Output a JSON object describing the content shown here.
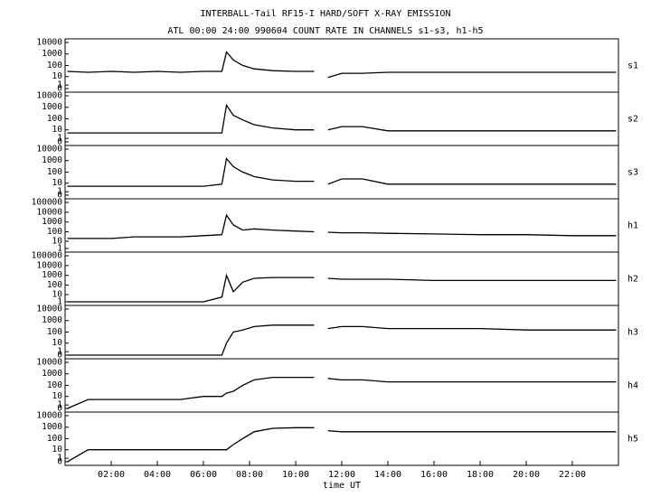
{
  "chart_data": [
    {
      "type": "line",
      "title": "INTERBALL-Tail RF15-I HARD/SOFT X-RAY EMISSION",
      "subtitle": "ATL 00:00 24:00 990604  COUNT RATE IN CHANNELS s1-s3, h1-h5",
      "label": "s1",
      "yscale": "log1p",
      "xlim": [
        0,
        24
      ],
      "ylim": [
        0,
        10000
      ],
      "yticks": [
        0,
        1,
        10,
        100,
        1000,
        10000
      ],
      "x": [
        0.1,
        1,
        2,
        3,
        4,
        5,
        6,
        6.8,
        7,
        7.3,
        7.7,
        8.2,
        9,
        10,
        10.8,
        11.1,
        11.4,
        12,
        12.9,
        14,
        16,
        18,
        20,
        22,
        23.9
      ],
      "values": [
        30,
        25,
        30,
        25,
        30,
        25,
        30,
        30,
        1500,
        300,
        100,
        50,
        35,
        30,
        30,
        null,
        8,
        20,
        20,
        25,
        25,
        25,
        25,
        25,
        25
      ]
    },
    {
      "type": "line",
      "label": "s2",
      "yscale": "log1p",
      "xlim": [
        0,
        24
      ],
      "ylim": [
        0,
        10000
      ],
      "yticks": [
        0,
        1,
        10,
        100,
        1000,
        10000
      ],
      "x": [
        0.1,
        1,
        2,
        3,
        4,
        5,
        6,
        6.8,
        7,
        7.3,
        7.7,
        8.2,
        9,
        10,
        10.8,
        11.1,
        11.4,
        12,
        12.9,
        14,
        16,
        18,
        20,
        22,
        23.9
      ],
      "values": [
        5,
        5,
        5,
        5,
        5,
        5,
        5,
        5,
        1500,
        200,
        80,
        30,
        15,
        10,
        10,
        null,
        10,
        20,
        20,
        8,
        8,
        8,
        8,
        8,
        8
      ]
    },
    {
      "type": "line",
      "label": "s3",
      "yscale": "log1p",
      "xlim": [
        0,
        24
      ],
      "ylim": [
        0,
        10000
      ],
      "yticks": [
        0,
        1,
        10,
        100,
        1000,
        10000
      ],
      "x": [
        0.1,
        1,
        2,
        3,
        4,
        5,
        6,
        6.8,
        7,
        7.3,
        7.7,
        8.2,
        9,
        10,
        10.8,
        11.1,
        11.4,
        12,
        12.9,
        14,
        16,
        18,
        20,
        22,
        23.9
      ],
      "values": [
        5,
        5,
        5,
        5,
        5,
        5,
        5,
        8,
        1500,
        300,
        100,
        40,
        20,
        15,
        15,
        null,
        8,
        25,
        25,
        8,
        8,
        8,
        8,
        8,
        8
      ]
    },
    {
      "type": "line",
      "label": "h1",
      "yscale": "log1p",
      "xlim": [
        0,
        24
      ],
      "ylim": [
        1,
        100000
      ],
      "yticks": [
        1,
        10,
        100,
        1000,
        10000,
        100000
      ],
      "x": [
        0.1,
        1,
        2,
        3,
        4,
        5,
        6,
        6.8,
        7,
        7.3,
        7.7,
        8.2,
        9,
        10,
        10.8,
        11.1,
        11.4,
        12,
        12.9,
        14,
        16,
        18,
        20,
        22,
        23.9
      ],
      "values": [
        20,
        20,
        20,
        30,
        30,
        30,
        40,
        50,
        5000,
        500,
        150,
        200,
        150,
        120,
        100,
        null,
        90,
        80,
        80,
        70,
        60,
        50,
        50,
        40,
        40
      ]
    },
    {
      "type": "line",
      "label": "h2",
      "yscale": "log1p",
      "xlim": [
        0,
        24
      ],
      "ylim": [
        1,
        100000
      ],
      "yticks": [
        1,
        10,
        100,
        1000,
        10000,
        100000
      ],
      "x": [
        0.1,
        1,
        2,
        3,
        4,
        5,
        6,
        6.8,
        7,
        7.3,
        7.7,
        8.2,
        9,
        10,
        10.8,
        11.1,
        11.4,
        12,
        12.9,
        14,
        16,
        18,
        20,
        22,
        23.9
      ],
      "values": [
        1,
        1,
        1,
        1,
        1,
        1,
        1,
        5,
        1000,
        20,
        200,
        500,
        600,
        600,
        600,
        null,
        500,
        400,
        400,
        400,
        300,
        300,
        300,
        300,
        300
      ]
    },
    {
      "type": "line",
      "label": "h3",
      "yscale": "log1p",
      "xlim": [
        0,
        24
      ],
      "ylim": [
        0,
        10000
      ],
      "yticks": [
        0,
        1,
        10,
        100,
        1000,
        10000
      ],
      "x": [
        0.1,
        1,
        2,
        3,
        4,
        5,
        6,
        6.8,
        7,
        7.3,
        7.7,
        8.2,
        9,
        10,
        10.8,
        11.1,
        11.4,
        12,
        12.9,
        14,
        16,
        18,
        20,
        22,
        23.9
      ],
      "values": [
        0,
        0,
        0,
        0,
        0,
        0,
        0,
        0,
        10,
        100,
        150,
        300,
        400,
        400,
        400,
        null,
        200,
        300,
        300,
        200,
        200,
        200,
        150,
        150,
        150
      ]
    },
    {
      "type": "line",
      "label": "h4",
      "yscale": "log1p",
      "xlim": [
        0,
        24
      ],
      "ylim": [
        0,
        10000
      ],
      "yticks": [
        0,
        1,
        10,
        100,
        1000,
        10000
      ],
      "x": [
        0.1,
        1,
        2,
        3,
        4,
        5,
        6,
        6.8,
        7,
        7.3,
        7.7,
        8.2,
        9,
        10,
        10.8,
        11.1,
        11.4,
        12,
        12.9,
        14,
        16,
        18,
        20,
        22,
        23.9
      ],
      "values": [
        0,
        5,
        5,
        5,
        5,
        5,
        10,
        10,
        20,
        30,
        100,
        300,
        500,
        500,
        500,
        null,
        400,
        300,
        300,
        200,
        200,
        200,
        200,
        200,
        200
      ]
    },
    {
      "type": "line",
      "label": "h5",
      "yscale": "log1p",
      "xlim": [
        0,
        24
      ],
      "ylim": [
        0,
        10000
      ],
      "yticks": [
        0,
        1,
        10,
        100,
        1000,
        10000
      ],
      "x": [
        0.1,
        1,
        2,
        3,
        4,
        5,
        6,
        6.8,
        7,
        7.3,
        7.7,
        8.2,
        9,
        10,
        10.8,
        11.1,
        11.4,
        12,
        12.9,
        14,
        16,
        18,
        20,
        22,
        23.9
      ],
      "values": [
        0,
        10,
        10,
        10,
        10,
        10,
        10,
        10,
        10,
        30,
        100,
        400,
        800,
        900,
        900,
        null,
        500,
        400,
        400,
        400,
        400,
        400,
        400,
        400,
        400
      ],
      "xlabel": "time UT",
      "xticks": [
        {
          "value": 2,
          "label": "02:00"
        },
        {
          "value": 4,
          "label": "04:00"
        },
        {
          "value": 6,
          "label": "06:00"
        },
        {
          "value": 8,
          "label": "08:00"
        },
        {
          "value": 10,
          "label": "10:00"
        },
        {
          "value": 12,
          "label": "12:00"
        },
        {
          "value": 14,
          "label": "14:00"
        },
        {
          "value": 16,
          "label": "16:00"
        },
        {
          "value": 18,
          "label": "18:00"
        },
        {
          "value": 20,
          "label": "20:00"
        },
        {
          "value": 22,
          "label": "22:00"
        }
      ]
    }
  ]
}
